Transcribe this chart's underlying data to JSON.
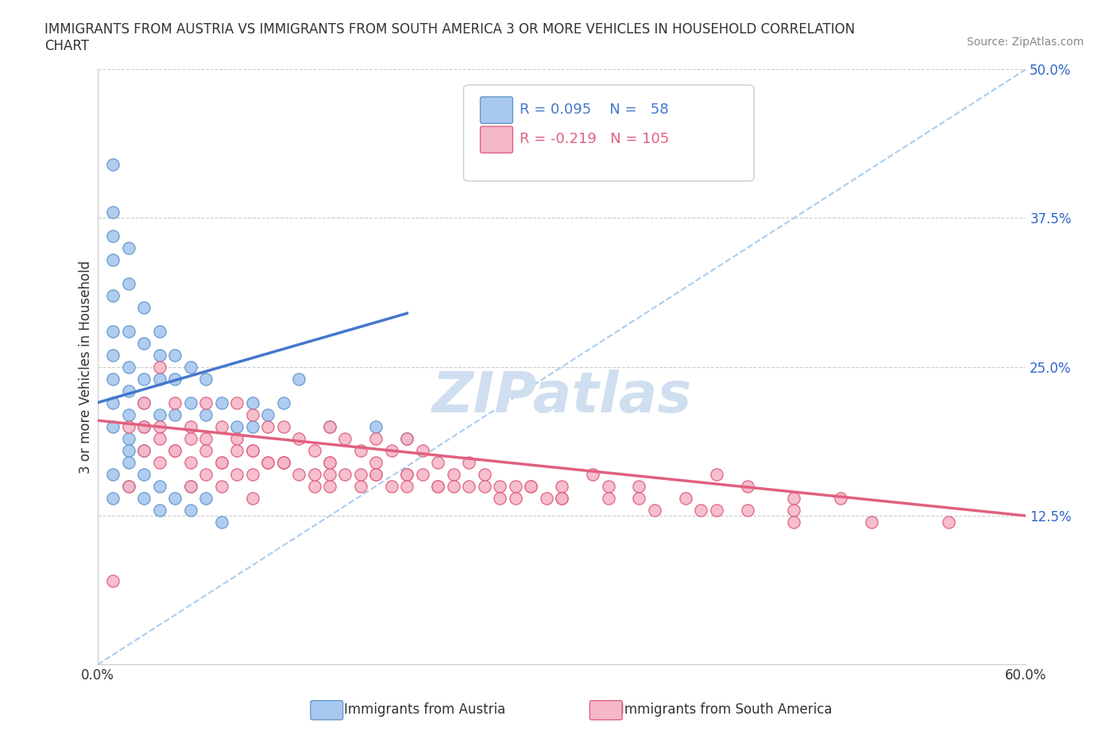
{
  "title": "IMMIGRANTS FROM AUSTRIA VS IMMIGRANTS FROM SOUTH AMERICA 3 OR MORE VEHICLES IN HOUSEHOLD CORRELATION\nCHART",
  "source_text": "Source: ZipAtlas.com",
  "xlabel": "",
  "ylabel": "3 or more Vehicles in Household",
  "xmin": 0.0,
  "xmax": 0.6,
  "ymin": 0.0,
  "ymax": 0.5,
  "xticks": [
    0.0,
    0.1,
    0.2,
    0.3,
    0.4,
    0.5,
    0.6
  ],
  "yticks": [
    0.0,
    0.125,
    0.25,
    0.375,
    0.5
  ],
  "ytick_labels": [
    "",
    "12.5%",
    "25.0%",
    "37.5%",
    "50.0%"
  ],
  "xtick_labels": [
    "0.0%",
    "",
    "",
    "",
    "",
    "",
    "60.0%"
  ],
  "legend_r1": "R = 0.095",
  "legend_n1": "N =  58",
  "legend_r2": "R = -0.219",
  "legend_n2": "N = 105",
  "austria_color": "#a8c8f0",
  "austria_edge": "#6699cc",
  "south_america_color": "#f5b8c8",
  "south_america_edge": "#e06080",
  "austria_line_color": "#4477cc",
  "south_america_line_color": "#e06080",
  "diagonal_line_color": "#aaccee",
  "watermark_color": "#d0dff0",
  "R_austria": 0.095,
  "N_austria": 58,
  "R_south_america": -0.219,
  "N_south_america": 105,
  "legend_R_color": "#4477cc",
  "legend_R2_color": "#e06080",
  "austria_scatter": {
    "x": [
      0.01,
      0.01,
      0.01,
      0.01,
      0.01,
      0.01,
      0.01,
      0.01,
      0.01,
      0.01,
      0.02,
      0.02,
      0.02,
      0.02,
      0.02,
      0.02,
      0.02,
      0.02,
      0.03,
      0.03,
      0.03,
      0.03,
      0.03,
      0.03,
      0.04,
      0.04,
      0.04,
      0.04,
      0.05,
      0.05,
      0.05,
      0.06,
      0.06,
      0.07,
      0.07,
      0.08,
      0.09,
      0.1,
      0.1,
      0.11,
      0.12,
      0.13,
      0.15,
      0.18,
      0.2,
      0.01,
      0.01,
      0.02,
      0.02,
      0.03,
      0.03,
      0.04,
      0.04,
      0.05,
      0.06,
      0.06,
      0.07,
      0.08
    ],
    "y": [
      0.42,
      0.38,
      0.36,
      0.34,
      0.31,
      0.28,
      0.26,
      0.24,
      0.22,
      0.2,
      0.35,
      0.32,
      0.28,
      0.25,
      0.23,
      0.21,
      0.19,
      0.18,
      0.3,
      0.27,
      0.24,
      0.22,
      0.2,
      0.18,
      0.28,
      0.26,
      0.24,
      0.21,
      0.26,
      0.24,
      0.21,
      0.25,
      0.22,
      0.24,
      0.21,
      0.22,
      0.2,
      0.22,
      0.2,
      0.21,
      0.22,
      0.24,
      0.2,
      0.2,
      0.19,
      0.16,
      0.14,
      0.17,
      0.15,
      0.16,
      0.14,
      0.15,
      0.13,
      0.14,
      0.15,
      0.13,
      0.14,
      0.12
    ]
  },
  "south_america_scatter": {
    "x": [
      0.01,
      0.02,
      0.02,
      0.03,
      0.03,
      0.04,
      0.04,
      0.04,
      0.05,
      0.05,
      0.06,
      0.06,
      0.06,
      0.07,
      0.07,
      0.07,
      0.08,
      0.08,
      0.08,
      0.09,
      0.09,
      0.09,
      0.1,
      0.1,
      0.1,
      0.1,
      0.11,
      0.11,
      0.12,
      0.12,
      0.13,
      0.13,
      0.14,
      0.14,
      0.15,
      0.15,
      0.15,
      0.16,
      0.16,
      0.17,
      0.17,
      0.18,
      0.18,
      0.19,
      0.19,
      0.2,
      0.2,
      0.21,
      0.22,
      0.22,
      0.23,
      0.24,
      0.25,
      0.26,
      0.27,
      0.28,
      0.29,
      0.3,
      0.32,
      0.33,
      0.35,
      0.38,
      0.4,
      0.42,
      0.45,
      0.48,
      0.05,
      0.08,
      0.1,
      0.12,
      0.15,
      0.18,
      0.2,
      0.22,
      0.25,
      0.28,
      0.3,
      0.35,
      0.4,
      0.45,
      0.5,
      0.55,
      0.03,
      0.06,
      0.09,
      0.12,
      0.15,
      0.18,
      0.21,
      0.24,
      0.27,
      0.3,
      0.33,
      0.36,
      0.39,
      0.42,
      0.45,
      0.04,
      0.07,
      0.11,
      0.14,
      0.17,
      0.2,
      0.23,
      0.26
    ],
    "y": [
      0.07,
      0.2,
      0.15,
      0.22,
      0.18,
      0.25,
      0.2,
      0.17,
      0.22,
      0.18,
      0.2,
      0.17,
      0.15,
      0.22,
      0.19,
      0.16,
      0.2,
      0.17,
      0.15,
      0.22,
      0.19,
      0.16,
      0.21,
      0.18,
      0.16,
      0.14,
      0.2,
      0.17,
      0.2,
      0.17,
      0.19,
      0.16,
      0.18,
      0.15,
      0.2,
      0.17,
      0.15,
      0.19,
      0.16,
      0.18,
      0.15,
      0.19,
      0.16,
      0.18,
      0.15,
      0.19,
      0.16,
      0.18,
      0.17,
      0.15,
      0.16,
      0.17,
      0.16,
      0.15,
      0.14,
      0.15,
      0.14,
      0.15,
      0.16,
      0.15,
      0.15,
      0.14,
      0.16,
      0.15,
      0.14,
      0.14,
      0.18,
      0.17,
      0.18,
      0.17,
      0.16,
      0.17,
      0.16,
      0.15,
      0.15,
      0.15,
      0.14,
      0.14,
      0.13,
      0.13,
      0.12,
      0.12,
      0.2,
      0.19,
      0.18,
      0.17,
      0.17,
      0.16,
      0.16,
      0.15,
      0.15,
      0.14,
      0.14,
      0.13,
      0.13,
      0.13,
      0.12,
      0.19,
      0.18,
      0.17,
      0.16,
      0.16,
      0.15,
      0.15,
      0.14
    ]
  }
}
